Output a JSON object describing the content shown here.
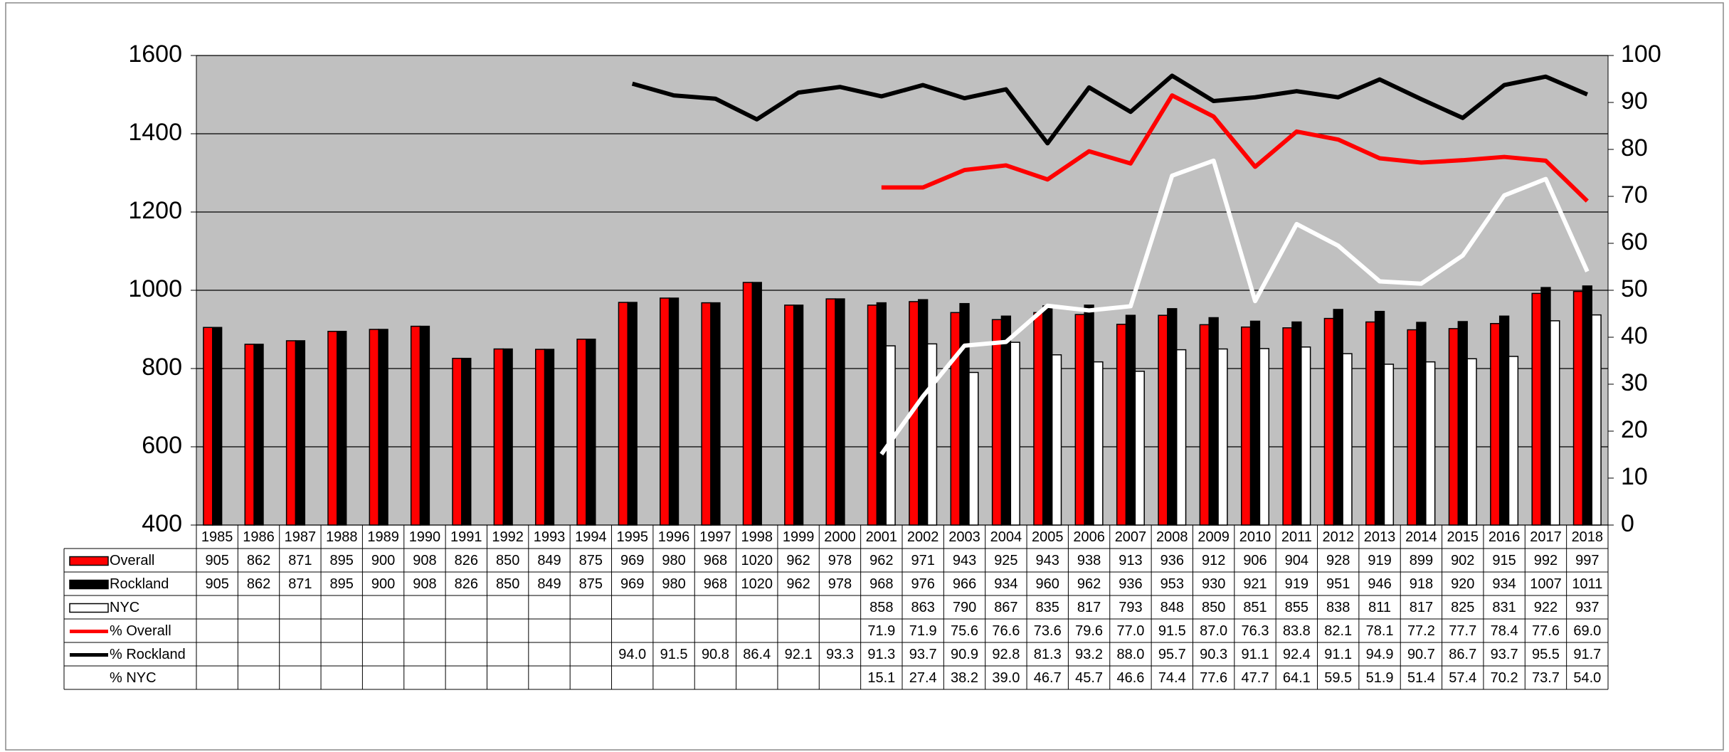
{
  "chart_data": {
    "type": "bar",
    "categories": [
      "1985",
      "1986",
      "1987",
      "1988",
      "1989",
      "1990",
      "1991",
      "1992",
      "1993",
      "1994",
      "1995",
      "1996",
      "1997",
      "1998",
      "1999",
      "2000",
      "2001",
      "2002",
      "2003",
      "2004",
      "2005",
      "2006",
      "2007",
      "2008",
      "2009",
      "2010",
      "2011",
      "2012",
      "2013",
      "2014",
      "2015",
      "2016",
      "2017",
      "2018"
    ],
    "ylim": [
      400,
      1600
    ],
    "yticks": [
      400,
      600,
      800,
      1000,
      1200,
      1400,
      1600
    ],
    "y2lim": [
      0,
      100
    ],
    "y2ticks": [
      0,
      10,
      20,
      30,
      40,
      50,
      60,
      70,
      80,
      90,
      100
    ],
    "grid": true,
    "series": [
      {
        "name": "Overall",
        "type": "bar",
        "color": "#ff0000",
        "values": [
          905,
          862,
          871,
          895,
          900,
          908,
          826,
          850,
          849,
          875,
          969,
          980,
          968,
          1020,
          962,
          978,
          962,
          971,
          943,
          925,
          943,
          938,
          913,
          936,
          912,
          906,
          904,
          928,
          919,
          899,
          902,
          915,
          992,
          997
        ]
      },
      {
        "name": "Rockland",
        "type": "bar",
        "color": "#000000",
        "values": [
          905,
          862,
          871,
          895,
          900,
          908,
          826,
          850,
          849,
          875,
          969,
          980,
          968,
          1020,
          962,
          978,
          968,
          976,
          966,
          934,
          960,
          962,
          936,
          953,
          930,
          921,
          919,
          951,
          946,
          918,
          920,
          934,
          1007,
          1011
        ]
      },
      {
        "name": "NYC",
        "type": "bar",
        "color": "#ffffff",
        "values": [
          null,
          null,
          null,
          null,
          null,
          null,
          null,
          null,
          null,
          null,
          null,
          null,
          null,
          null,
          null,
          null,
          858,
          863,
          790,
          867,
          835,
          817,
          793,
          848,
          850,
          851,
          855,
          838,
          811,
          817,
          825,
          831,
          922,
          937
        ]
      },
      {
        "name": "% Overall",
        "type": "line",
        "axis": "y2",
        "color": "#ff0000",
        "values": [
          null,
          null,
          null,
          null,
          null,
          null,
          null,
          null,
          null,
          null,
          null,
          null,
          null,
          null,
          null,
          null,
          71.9,
          71.9,
          75.6,
          76.6,
          73.6,
          79.6,
          77.0,
          91.5,
          87.0,
          76.3,
          83.8,
          82.1,
          78.1,
          77.2,
          77.7,
          78.4,
          77.6,
          69.0
        ],
        "value_labels": [
          null,
          null,
          null,
          null,
          null,
          null,
          null,
          null,
          null,
          null,
          null,
          null,
          null,
          null,
          null,
          null,
          "71.9",
          "71.9",
          "75.6",
          "76.6",
          "73.6",
          "79.6",
          "77.0",
          "91.5",
          "87.0",
          "76.3",
          "83.8",
          "82.1",
          "78.1",
          "77.2",
          "77.7",
          "78.4",
          "77.6",
          "69.0"
        ]
      },
      {
        "name": "% Rockland",
        "type": "line",
        "axis": "y2",
        "color": "#000000",
        "values": [
          null,
          null,
          null,
          null,
          null,
          null,
          null,
          null,
          null,
          null,
          94.0,
          91.5,
          90.8,
          86.4,
          92.1,
          93.3,
          91.3,
          93.7,
          90.9,
          92.8,
          81.3,
          93.2,
          88.0,
          95.7,
          90.3,
          91.1,
          92.4,
          91.1,
          94.9,
          90.7,
          86.7,
          93.7,
          95.5,
          91.7
        ],
        "value_labels": [
          null,
          null,
          null,
          null,
          null,
          null,
          null,
          null,
          null,
          null,
          "94.0",
          "91.5",
          "90.8",
          "86.4",
          "92.1",
          "93.3",
          "91.3",
          "93.7",
          "90.9",
          "92.8",
          "81.3",
          "93.2",
          "88.0",
          "95.7",
          "90.3",
          "91.1",
          "92.4",
          "91.1",
          "94.9",
          "90.7",
          "86.7",
          "93.7",
          "95.5",
          "91.7"
        ]
      },
      {
        "name": "% NYC",
        "type": "line",
        "axis": "y2",
        "color": "#ffffff",
        "values": [
          null,
          null,
          null,
          null,
          null,
          null,
          null,
          null,
          null,
          null,
          null,
          null,
          null,
          null,
          null,
          null,
          15.1,
          27.4,
          38.2,
          39.0,
          46.7,
          45.7,
          46.6,
          74.4,
          77.6,
          47.7,
          64.1,
          59.5,
          51.9,
          51.4,
          57.4,
          70.2,
          73.7,
          54.0
        ],
        "value_labels": [
          null,
          null,
          null,
          null,
          null,
          null,
          null,
          null,
          null,
          null,
          null,
          null,
          null,
          null,
          null,
          null,
          "15.1",
          "27.4",
          "38.2",
          "39.0",
          "46.7",
          "45.7",
          "46.6",
          "74.4",
          "77.6",
          "47.7",
          "64.1",
          "59.5",
          "51.9",
          "51.4",
          "57.4",
          "70.2",
          "73.7",
          "54.0"
        ]
      }
    ]
  }
}
